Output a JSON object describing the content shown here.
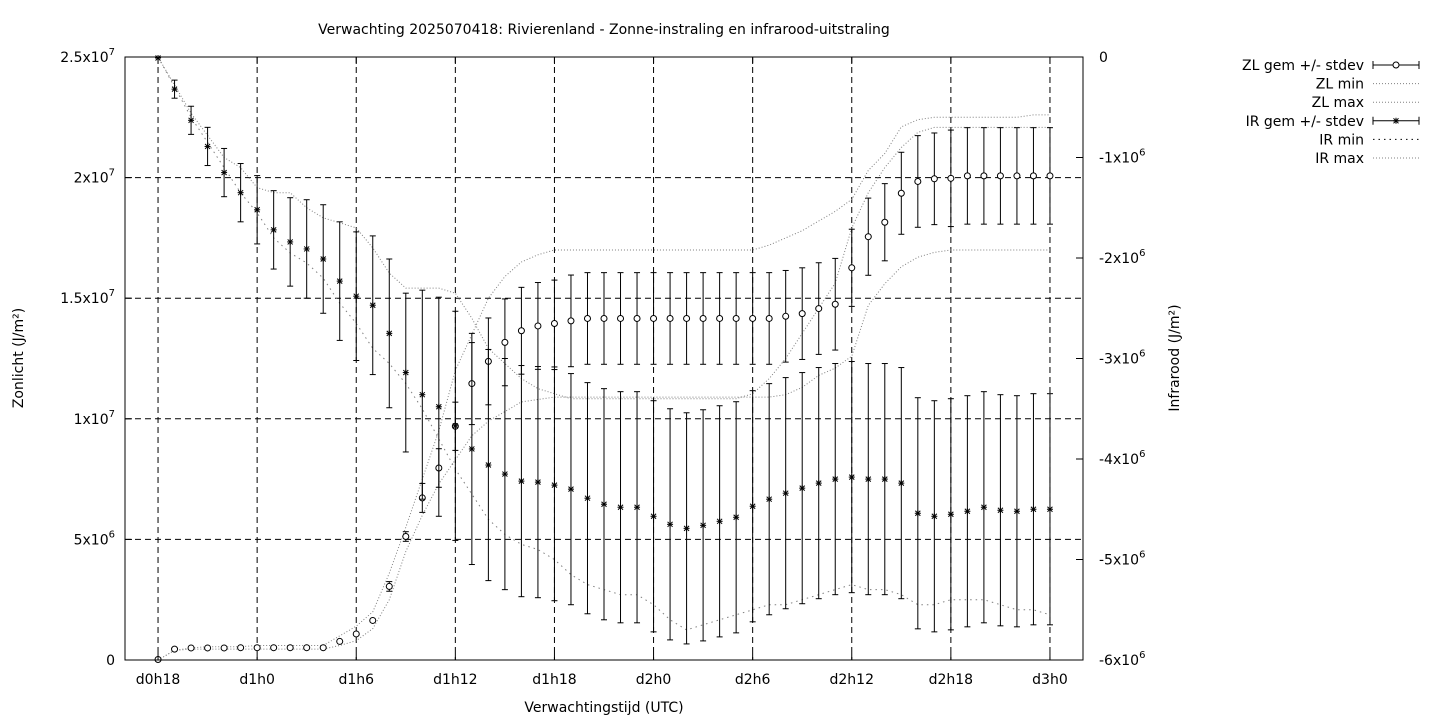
{
  "chart_data": {
    "type": "line",
    "title": "Verwachting 2025070418: Rivierenland - Zonne-instraling en infrarood-uitstraling",
    "xlabel": "Verwachtingstijd (UTC)",
    "ylabel": "Zonlicht (J/m²)",
    "y2label": "Infrarood (J/m²)",
    "x_tick_labels": [
      "d0h18",
      "d1h0",
      "d1h6",
      "d1h12",
      "d1h18",
      "d2h0",
      "d2h6",
      "d2h12",
      "d2h18",
      "d3h0"
    ],
    "x_tick_hours": [
      18,
      24,
      30,
      36,
      42,
      48,
      54,
      60,
      66,
      72
    ],
    "xlim_hours": [
      16,
      74
    ],
    "ylim": [
      0,
      25000000
    ],
    "y2lim": [
      -6000000,
      0
    ],
    "y_ticks": [
      {
        "value": 0,
        "m": "0",
        "e": ""
      },
      {
        "value": 5000000,
        "m": "5x10",
        "e": "6"
      },
      {
        "value": 10000000,
        "m": "1x10",
        "e": "7"
      },
      {
        "value": 15000000,
        "m": "1.5x10",
        "e": "7"
      },
      {
        "value": 20000000,
        "m": "2x10",
        "e": "7"
      },
      {
        "value": 25000000,
        "m": "2.5x10",
        "e": "7"
      }
    ],
    "y2_ticks": [
      {
        "value": 0,
        "m": "0",
        "e": ""
      },
      {
        "value": -1000000,
        "m": "-1x10",
        "e": "6"
      },
      {
        "value": -2000000,
        "m": "-2x10",
        "e": "6"
      },
      {
        "value": -3000000,
        "m": "-3x10",
        "e": "6"
      },
      {
        "value": -4000000,
        "m": "-4x10",
        "e": "6"
      },
      {
        "value": -5000000,
        "m": "-5x10",
        "e": "6"
      },
      {
        "value": -6000000,
        "m": "-6x10",
        "e": "6"
      }
    ],
    "grid": true,
    "legend_position": "top-right outside",
    "legend": [
      {
        "label": "ZL gem +/- stdev",
        "style": "errorbar-circle"
      },
      {
        "label": "ZL min",
        "style": "dotted"
      },
      {
        "label": "ZL max",
        "style": "dotted"
      },
      {
        "label": "IR gem +/- stdev",
        "style": "errorbar-star"
      },
      {
        "label": "IR min",
        "style": "dotted-sparse"
      },
      {
        "label": "IR max",
        "style": "dotted"
      }
    ],
    "x_hours": [
      18,
      19,
      20,
      21,
      22,
      23,
      24,
      25,
      26,
      27,
      28,
      29,
      30,
      31,
      32,
      33,
      34,
      35,
      36,
      37,
      38,
      39,
      40,
      41,
      42,
      43,
      44,
      45,
      46,
      47,
      48,
      49,
      50,
      51,
      52,
      53,
      54,
      55,
      56,
      57,
      58,
      59,
      60,
      61,
      62,
      63,
      64,
      65,
      66,
      67,
      68,
      69,
      70,
      71,
      72
    ],
    "series": [
      {
        "name": "ZL gem +/- stdev",
        "axis": "y1",
        "values": [
          20000,
          450000,
          500000,
          500000,
          500000,
          510000,
          510000,
          510000,
          510000,
          510000,
          510000,
          770000,
          1080000,
          1640000,
          3050000,
          5120000,
          6720000,
          7960000,
          9690000,
          11460000,
          12380000,
          13170000,
          13650000,
          13850000,
          13950000,
          14060000,
          14160000,
          14160000,
          14160000,
          14160000,
          14160000,
          14160000,
          14160000,
          14160000,
          14160000,
          14160000,
          14160000,
          14160000,
          14250000,
          14360000,
          14570000,
          14750000,
          16260000,
          17550000,
          18150000,
          19350000,
          19840000,
          19950000,
          19970000,
          20070000,
          20070000,
          20070000,
          20070000,
          20070000,
          20070000
        ],
        "stdev": [
          0,
          0,
          0,
          0,
          0,
          0,
          0,
          0,
          0,
          0,
          0,
          0,
          0,
          0,
          200000,
          200000,
          600000,
          800000,
          1000000,
          1700000,
          1800000,
          1800000,
          1800000,
          1800000,
          1800000,
          1900000,
          1900000,
          1900000,
          1900000,
          1900000,
          1900000,
          1900000,
          1900000,
          1900000,
          1900000,
          1900000,
          1900000,
          1900000,
          1900000,
          1900000,
          1900000,
          1900000,
          1600000,
          1600000,
          1600000,
          1700000,
          1900000,
          1900000,
          2000000,
          2000000,
          2000000,
          2000000,
          2000000,
          2000000,
          2000000
        ]
      },
      {
        "name": "ZL min",
        "axis": "y1",
        "values": [
          0,
          400000,
          450000,
          450000,
          450000,
          450000,
          450000,
          450000,
          450000,
          450000,
          450000,
          600000,
          800000,
          1300000,
          2500000,
          4500000,
          6000000,
          7300000,
          8300000,
          9300000,
          9900000,
          10300000,
          10700000,
          10800000,
          10900000,
          10900000,
          10900000,
          10900000,
          10900000,
          10900000,
          10900000,
          10900000,
          10900000,
          10900000,
          10900000,
          10900000,
          10900000,
          10900000,
          11000000,
          11300000,
          11800000,
          12100000,
          12600000,
          14700000,
          15600000,
          16300000,
          16700000,
          16900000,
          17000000,
          17000000,
          17000000,
          17000000,
          17000000,
          17000000,
          17000000
        ]
      },
      {
        "name": "ZL max",
        "axis": "y1",
        "values": [
          0,
          400000,
          500000,
          550000,
          550000,
          550000,
          600000,
          600000,
          600000,
          600000,
          600000,
          1000000,
          1400000,
          2000000,
          3600000,
          5500000,
          7500000,
          9500000,
          12000000,
          13500000,
          15000000,
          15900000,
          16500000,
          16800000,
          17000000,
          17000000,
          17000000,
          17000000,
          17000000,
          17000000,
          17000000,
          17000000,
          17000000,
          17000000,
          17000000,
          17000000,
          17000000,
          17200000,
          17500000,
          17800000,
          18200000,
          18600000,
          19100000,
          20300000,
          21000000,
          22100000,
          22400000,
          22500000,
          22500000,
          22500000,
          22500000,
          22500000,
          22500000,
          22600000,
          22600000
        ]
      },
      {
        "name": "IR gem +/- stdev",
        "axis": "y2",
        "values": [
          -10000,
          -320000,
          -630000,
          -890000,
          -1150000,
          -1350000,
          -1520000,
          -1720000,
          -1840000,
          -1910000,
          -2010000,
          -2230000,
          -2380000,
          -2470000,
          -2750000,
          -3140000,
          -3360000,
          -3480000,
          -3670000,
          -3900000,
          -4060000,
          -4150000,
          -4220000,
          -4230000,
          -4260000,
          -4300000,
          -4390000,
          -4450000,
          -4480000,
          -4480000,
          -4570000,
          -4650000,
          -4690000,
          -4660000,
          -4620000,
          -4580000,
          -4470000,
          -4400000,
          -4340000,
          -4290000,
          -4240000,
          -4200000,
          -4180000,
          -4200000,
          -4200000,
          -4240000,
          -4540000,
          -4570000,
          -4550000,
          -4520000,
          -4480000,
          -4510000,
          -4520000,
          -4500000,
          -4500000
        ]
      },
      {
        "name": "IR min",
        "axis": "y2",
        "values": [
          0,
          -300000,
          -600000,
          -850000,
          -1100000,
          -1350000,
          -1550000,
          -1800000,
          -1950000,
          -2050000,
          -2200000,
          -2450000,
          -2650000,
          -2900000,
          -3050000,
          -3250000,
          -3500000,
          -3800000,
          -4100000,
          -4350000,
          -4600000,
          -4750000,
          -4850000,
          -4900000,
          -5000000,
          -5150000,
          -5250000,
          -5300000,
          -5350000,
          -5350000,
          -5450000,
          -5600000,
          -5700000,
          -5650000,
          -5600000,
          -5550000,
          -5500000,
          -5450000,
          -5450000,
          -5400000,
          -5350000,
          -5300000,
          -5250000,
          -5300000,
          -5300000,
          -5350000,
          -5450000,
          -5450000,
          -5400000,
          -5400000,
          -5400000,
          -5450000,
          -5500000,
          -5500000,
          -5550000
        ]
      },
      {
        "name": "IR max",
        "axis": "y2",
        "values": [
          0,
          -280000,
          -560000,
          -780000,
          -1000000,
          -1100000,
          -1300000,
          -1350000,
          -1350000,
          -1500000,
          -1600000,
          -1650000,
          -1700000,
          -1900000,
          -2150000,
          -2300000,
          -2300000,
          -2300000,
          -2350000,
          -2600000,
          -2900000,
          -3050000,
          -3200000,
          -3300000,
          -3350000,
          -3400000,
          -3400000,
          -3400000,
          -3400000,
          -3400000,
          -3400000,
          -3400000,
          -3400000,
          -3400000,
          -3400000,
          -3400000,
          -3350000,
          -3200000,
          -3000000,
          -2750000,
          -2500000,
          -2250000,
          -1700000,
          -1350000,
          -1100000,
          -900000,
          -750000,
          -700000,
          -700000,
          -700000,
          -700000,
          -700000,
          -700000,
          -700000,
          -700000
        ]
      }
    ]
  }
}
